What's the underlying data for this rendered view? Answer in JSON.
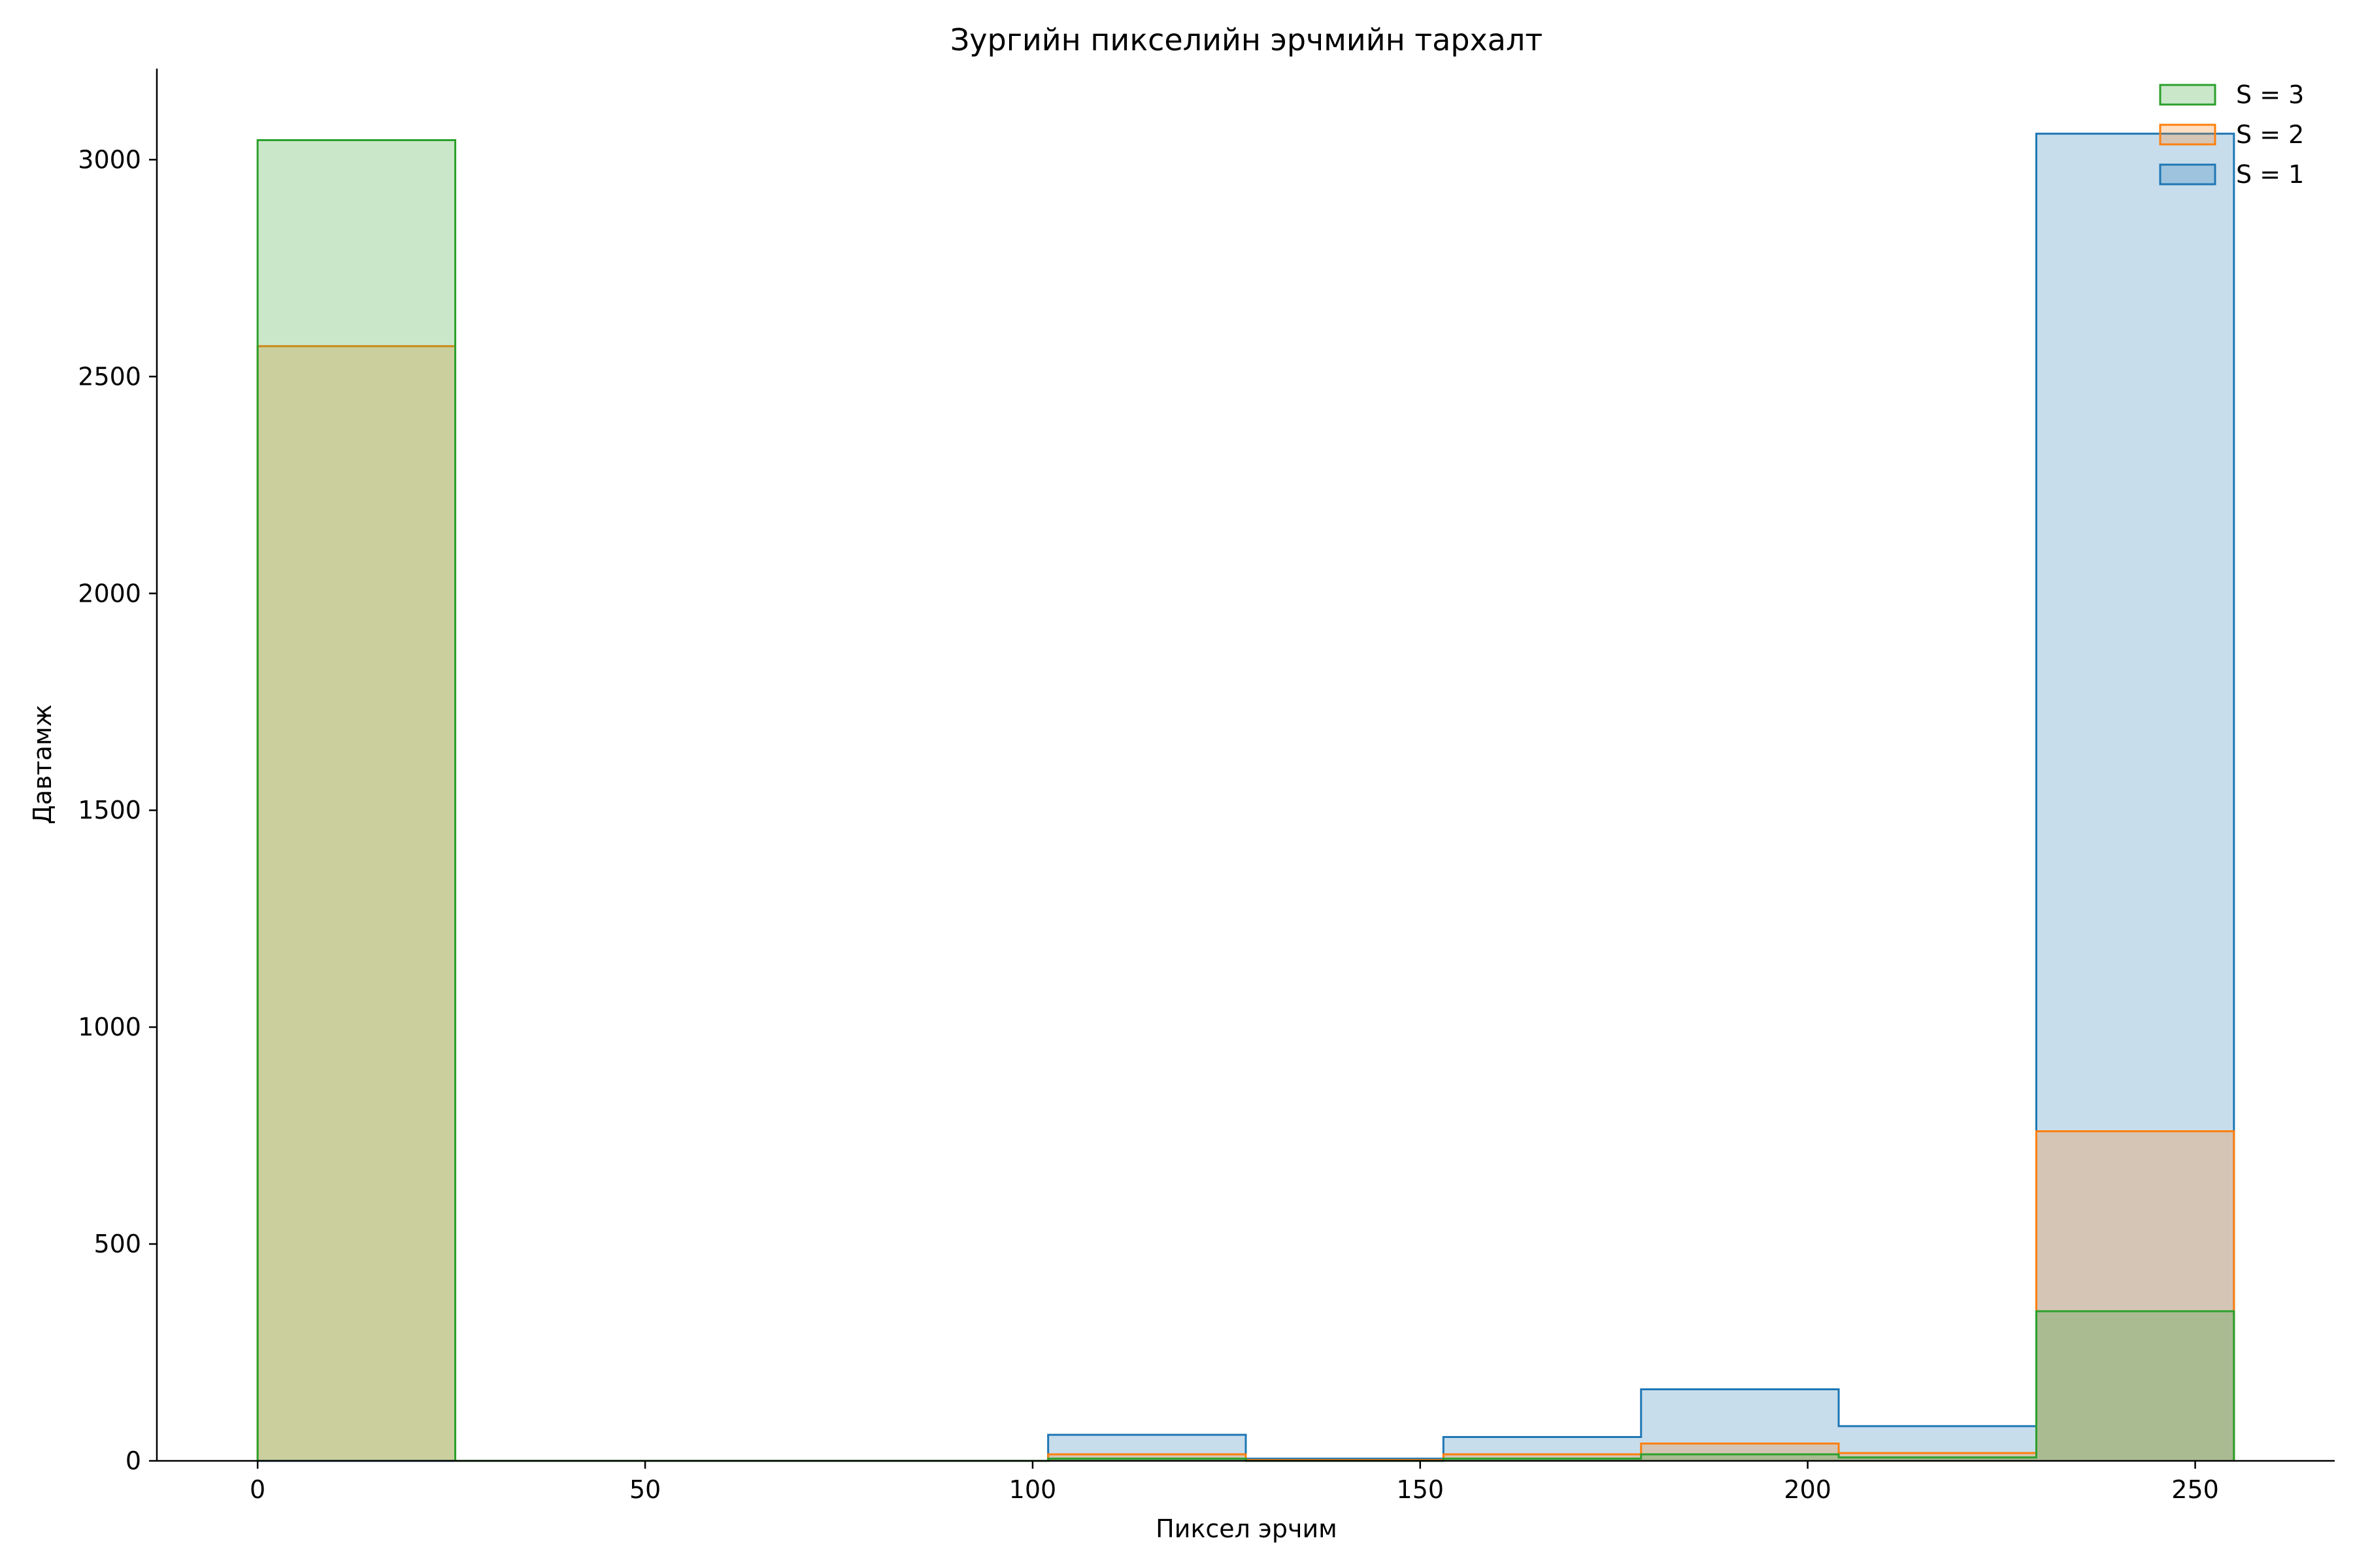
{
  "chart_data": {
    "type": "histogram",
    "title": "Зургийн пикселийн эрчмийн тархалт",
    "xlabel": "Пиксел эрчим",
    "ylabel": "Давтамж",
    "xlim": [
      -13,
      268
    ],
    "ylim": [
      0,
      3210
    ],
    "xticks": [
      0,
      50,
      100,
      150,
      200,
      250
    ],
    "yticks": [
      0,
      500,
      1000,
      1500,
      2000,
      2500,
      3000
    ],
    "bin_edges": [
      0,
      25.5,
      51,
      76.5,
      102,
      127.5,
      153,
      178.5,
      204,
      229.5,
      255
    ],
    "grid": false,
    "legend_position": "top-right",
    "series": [
      {
        "name": "S = 3",
        "color": "#2ca02c",
        "values": [
          3045,
          0,
          0,
          0,
          5,
          0,
          5,
          15,
          8,
          345
        ]
      },
      {
        "name": "S = 2",
        "color": "#ff7f0e",
        "values": [
          2570,
          0,
          0,
          0,
          15,
          2,
          15,
          40,
          18,
          760
        ]
      },
      {
        "name": "S = 1",
        "color": "#1f77b4",
        "values": [
          0,
          0,
          0,
          0,
          60,
          5,
          55,
          165,
          80,
          3060
        ]
      }
    ],
    "legend_order": [
      "S = 3",
      "S = 2",
      "S = 1"
    ]
  }
}
